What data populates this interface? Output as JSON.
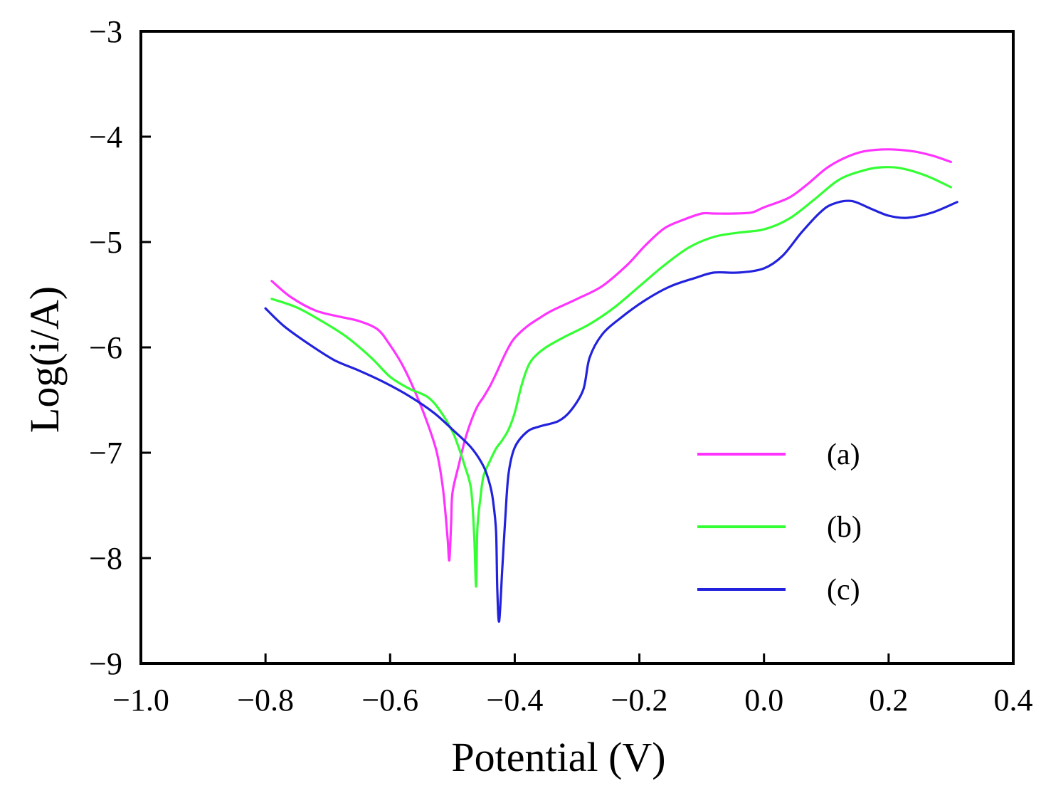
{
  "chart_data": {
    "type": "line",
    "title": "",
    "xlabel": "Potential (V)",
    "ylabel": "Log(i/A)",
    "xlim": [
      -1.0,
      0.4
    ],
    "ylim": [
      -9,
      -3
    ],
    "xticks": [
      -1.0,
      -0.8,
      -0.6,
      -0.4,
      -0.2,
      0.0,
      0.2,
      0.4
    ],
    "xtick_labels": [
      "−1.0",
      "−0.8",
      "−0.6",
      "−0.4",
      "−0.2",
      "0.0",
      "0.2",
      "0.4"
    ],
    "yticks": [
      -3,
      -4,
      -5,
      -6,
      -7,
      -8,
      -9
    ],
    "ytick_labels": [
      "−3",
      "−4",
      "−5",
      "−6",
      "−7",
      "−8",
      "−9"
    ],
    "grid": false,
    "legend_position": "bottom-right",
    "series": [
      {
        "name": "(a)",
        "color": "#ff33ff",
        "x": [
          -0.79,
          -0.76,
          -0.72,
          -0.68,
          -0.65,
          -0.62,
          -0.6,
          -0.58,
          -0.56,
          -0.54,
          -0.525,
          -0.515,
          -0.508,
          -0.505,
          -0.502,
          -0.5,
          -0.49,
          -0.48,
          -0.47,
          -0.46,
          -0.45,
          -0.44,
          -0.43,
          -0.42,
          -0.41,
          -0.4,
          -0.38,
          -0.36,
          -0.34,
          -0.3,
          -0.26,
          -0.22,
          -0.19,
          -0.16,
          -0.13,
          -0.1,
          -0.08,
          -0.05,
          -0.02,
          0.0,
          0.04,
          0.07,
          0.1,
          0.13,
          0.16,
          0.2,
          0.24,
          0.27,
          0.3
        ],
        "y": [
          -5.37,
          -5.52,
          -5.65,
          -5.71,
          -5.75,
          -5.83,
          -5.98,
          -6.17,
          -6.42,
          -6.72,
          -7.0,
          -7.35,
          -7.8,
          -8.02,
          -7.65,
          -7.38,
          -7.12,
          -6.88,
          -6.7,
          -6.56,
          -6.47,
          -6.37,
          -6.25,
          -6.12,
          -6.0,
          -5.91,
          -5.8,
          -5.72,
          -5.65,
          -5.54,
          -5.42,
          -5.22,
          -5.03,
          -4.87,
          -4.79,
          -4.73,
          -4.73,
          -4.73,
          -4.72,
          -4.67,
          -4.58,
          -4.45,
          -4.3,
          -4.2,
          -4.14,
          -4.12,
          -4.14,
          -4.18,
          -4.24
        ]
      },
      {
        "name": "(b)",
        "color": "#33ff33",
        "x": [
          -0.79,
          -0.75,
          -0.71,
          -0.67,
          -0.63,
          -0.6,
          -0.57,
          -0.54,
          -0.52,
          -0.5,
          -0.49,
          -0.48,
          -0.47,
          -0.465,
          -0.462,
          -0.46,
          -0.455,
          -0.45,
          -0.44,
          -0.43,
          -0.42,
          -0.41,
          -0.4,
          -0.39,
          -0.38,
          -0.37,
          -0.35,
          -0.32,
          -0.28,
          -0.24,
          -0.2,
          -0.16,
          -0.12,
          -0.08,
          -0.04,
          0.0,
          0.04,
          0.08,
          0.12,
          0.16,
          0.19,
          0.22,
          0.26,
          0.3
        ],
        "y": [
          -5.54,
          -5.62,
          -5.75,
          -5.9,
          -6.1,
          -6.28,
          -6.39,
          -6.47,
          -6.6,
          -6.8,
          -6.95,
          -7.13,
          -7.35,
          -7.8,
          -8.27,
          -7.72,
          -7.42,
          -7.22,
          -7.08,
          -6.96,
          -6.88,
          -6.78,
          -6.62,
          -6.38,
          -6.2,
          -6.1,
          -6.0,
          -5.9,
          -5.78,
          -5.62,
          -5.42,
          -5.22,
          -5.05,
          -4.95,
          -4.91,
          -4.88,
          -4.78,
          -4.6,
          -4.41,
          -4.32,
          -4.29,
          -4.3,
          -4.37,
          -4.48
        ]
      },
      {
        "name": "(c)",
        "color": "#2222dd",
        "x": [
          -0.8,
          -0.77,
          -0.73,
          -0.69,
          -0.65,
          -0.61,
          -0.57,
          -0.53,
          -0.5,
          -0.47,
          -0.45,
          -0.44,
          -0.435,
          -0.43,
          -0.428,
          -0.425,
          -0.42,
          -0.415,
          -0.41,
          -0.4,
          -0.38,
          -0.36,
          -0.33,
          -0.31,
          -0.29,
          -0.28,
          -0.26,
          -0.23,
          -0.19,
          -0.15,
          -0.11,
          -0.08,
          -0.04,
          0.0,
          0.03,
          0.06,
          0.09,
          0.11,
          0.14,
          0.17,
          0.2,
          0.23,
          0.27,
          0.31
        ],
        "y": [
          -5.63,
          -5.8,
          -5.97,
          -6.12,
          -6.22,
          -6.33,
          -6.46,
          -6.62,
          -6.78,
          -6.95,
          -7.13,
          -7.3,
          -7.45,
          -7.75,
          -8.3,
          -8.6,
          -8.1,
          -7.6,
          -7.2,
          -6.95,
          -6.8,
          -6.75,
          -6.7,
          -6.6,
          -6.4,
          -6.1,
          -5.88,
          -5.72,
          -5.55,
          -5.42,
          -5.34,
          -5.29,
          -5.29,
          -5.25,
          -5.13,
          -4.91,
          -4.72,
          -4.64,
          -4.61,
          -4.68,
          -4.75,
          -4.77,
          -4.72,
          -4.62
        ]
      }
    ]
  }
}
